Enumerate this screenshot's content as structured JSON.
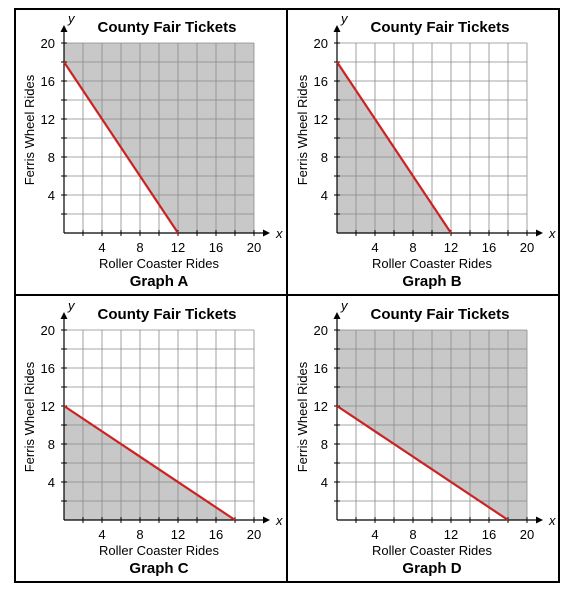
{
  "chart_data": [
    {
      "type": "line",
      "title": "County Fair Tickets",
      "xlabel": "Roller Coaster Rides",
      "ylabel": "Ferris Wheel Rides",
      "x_axis_letter": "x",
      "y_axis_letter": "y",
      "caption": "Graph A",
      "xlim": [
        0,
        20
      ],
      "ylim": [
        0,
        20
      ],
      "x_ticks": [
        4,
        8,
        12,
        16,
        20
      ],
      "y_ticks": [
        4,
        8,
        12,
        16,
        20
      ],
      "grid": true,
      "boundary": {
        "x": [
          0,
          12
        ],
        "y": [
          18,
          0
        ]
      },
      "shaded": "above",
      "line_color": "#cc2222",
      "shade_color": "#c8c8c8"
    },
    {
      "type": "line",
      "title": "County Fair Tickets",
      "xlabel": "Roller Coaster Rides",
      "ylabel": "Ferris Wheel Rides",
      "x_axis_letter": "x",
      "y_axis_letter": "y",
      "caption": "Graph B",
      "xlim": [
        0,
        20
      ],
      "ylim": [
        0,
        20
      ],
      "x_ticks": [
        4,
        8,
        12,
        16,
        20
      ],
      "y_ticks": [
        4,
        8,
        12,
        16,
        20
      ],
      "grid": true,
      "boundary": {
        "x": [
          0,
          12
        ],
        "y": [
          18,
          0
        ]
      },
      "shaded": "below",
      "line_color": "#cc2222",
      "shade_color": "#c8c8c8"
    },
    {
      "type": "line",
      "title": "County Fair Tickets",
      "xlabel": "Roller Coaster Rides",
      "ylabel": "Ferris Wheel Rides",
      "x_axis_letter": "x",
      "y_axis_letter": "y",
      "caption": "Graph C",
      "xlim": [
        0,
        20
      ],
      "ylim": [
        0,
        20
      ],
      "x_ticks": [
        4,
        8,
        12,
        16,
        20
      ],
      "y_ticks": [
        4,
        8,
        12,
        16,
        20
      ],
      "grid": true,
      "boundary": {
        "x": [
          0,
          18
        ],
        "y": [
          12,
          0
        ]
      },
      "shaded": "below",
      "line_color": "#cc2222",
      "shade_color": "#c8c8c8"
    },
    {
      "type": "line",
      "title": "County Fair Tickets",
      "xlabel": "Roller Coaster Rides",
      "ylabel": "Ferris Wheel Rides",
      "x_axis_letter": "x",
      "y_axis_letter": "y",
      "caption": "Graph D",
      "xlim": [
        0,
        20
      ],
      "ylim": [
        0,
        20
      ],
      "x_ticks": [
        4,
        8,
        12,
        16,
        20
      ],
      "y_ticks": [
        4,
        8,
        12,
        16,
        20
      ],
      "grid": true,
      "boundary": {
        "x": [
          0,
          18
        ],
        "y": [
          12,
          0
        ]
      },
      "shaded": "above",
      "line_color": "#cc2222",
      "shade_color": "#c8c8c8"
    }
  ]
}
